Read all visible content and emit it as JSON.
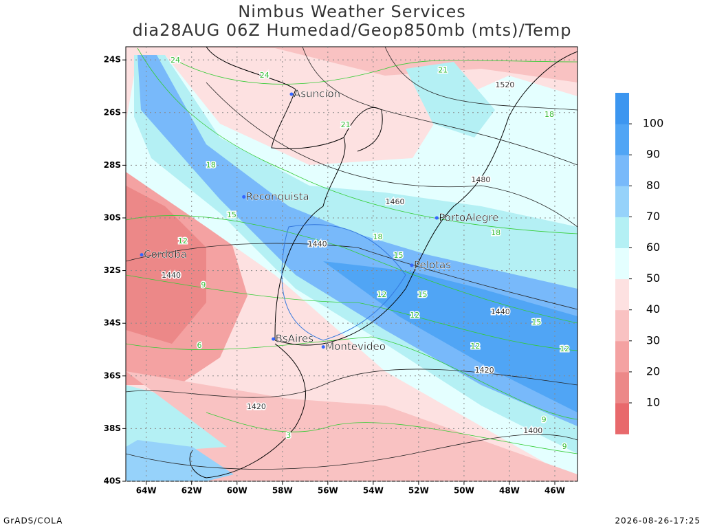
{
  "map": {
    "title": "Nimbus Weather Services",
    "subtitle": "dia28AUG 06Z Humedad/Geop850mb (mts)/Temp",
    "xlim": [
      -64.9,
      -45
    ],
    "ylim": [
      -40,
      -23.5
    ],
    "xticks": [
      {
        "value": -64,
        "label": "64W"
      },
      {
        "value": -62,
        "label": "62W"
      },
      {
        "value": -60,
        "label": "60W"
      },
      {
        "value": -58,
        "label": "58W"
      },
      {
        "value": -56,
        "label": "56W"
      },
      {
        "value": -54,
        "label": "54W"
      },
      {
        "value": -52,
        "label": "52W"
      },
      {
        "value": -50,
        "label": "50W"
      },
      {
        "value": -48,
        "label": "48W"
      },
      {
        "value": -46,
        "label": "46W"
      }
    ],
    "yticks": [
      {
        "value": -24,
        "label": "24S"
      },
      {
        "value": -26,
        "label": "26S"
      },
      {
        "value": -28,
        "label": "28S"
      },
      {
        "value": -30,
        "label": "30S"
      },
      {
        "value": -32,
        "label": "32S"
      },
      {
        "value": -34,
        "label": "34S"
      },
      {
        "value": -36,
        "label": "36S"
      },
      {
        "value": -38,
        "label": "38S"
      },
      {
        "value": -40,
        "label": "40S"
      }
    ],
    "grid": true,
    "cities": [
      {
        "name": "Asuncion",
        "lon": -57.6,
        "lat": -25.3
      },
      {
        "name": "Reconquista",
        "lon": -59.7,
        "lat": -29.2
      },
      {
        "name": "Cordoba",
        "lon": -64.2,
        "lat": -31.4
      },
      {
        "name": "BsAires",
        "lon": -58.4,
        "lat": -34.6
      },
      {
        "name": "Montevideo",
        "lon": -56.2,
        "lat": -34.9
      },
      {
        "name": "PortoAlegre",
        "lon": -51.2,
        "lat": -30.0
      },
      {
        "name": "Pelotas",
        "lon": -52.3,
        "lat": -31.8
      }
    ],
    "geopotential_labels": [
      {
        "value": 1520,
        "lon": -48.2,
        "lat": -24.96
      },
      {
        "value": 1480,
        "lon": -49.26,
        "lat": -28.57
      },
      {
        "value": 1460,
        "lon": -53.04,
        "lat": -29.4
      },
      {
        "value": 1440,
        "lon": -56.46,
        "lat": -31.0
      },
      {
        "value": 1440,
        "lon": -48.4,
        "lat": -33.58
      },
      {
        "value": 1440,
        "lon": -62.9,
        "lat": -32.2
      },
      {
        "value": 1420,
        "lon": -49.1,
        "lat": -35.8
      },
      {
        "value": 1420,
        "lon": -59.15,
        "lat": -37.18
      },
      {
        "value": 1400,
        "lon": -46.96,
        "lat": -38.1
      }
    ],
    "temperature_labels": [
      {
        "value": 24,
        "lon": -62.72,
        "lat": -24.02
      },
      {
        "value": 24,
        "lon": -58.79,
        "lat": -24.6
      },
      {
        "value": 21,
        "lon": -55.22,
        "lat": -26.48
      },
      {
        "value": 21,
        "lon": -50.93,
        "lat": -24.4
      },
      {
        "value": 18,
        "lon": -61.15,
        "lat": -28.0
      },
      {
        "value": 15,
        "lon": -60.24,
        "lat": -29.9
      },
      {
        "value": 12,
        "lon": -62.39,
        "lat": -30.89
      },
      {
        "value": 9,
        "lon": -61.48,
        "lat": -32.56
      },
      {
        "value": 6,
        "lon": -61.66,
        "lat": -34.86
      },
      {
        "value": 3,
        "lon": -57.73,
        "lat": -38.28
      },
      {
        "value": 18,
        "lon": -53.8,
        "lat": -30.73
      },
      {
        "value": 15,
        "lon": -52.89,
        "lat": -31.44
      },
      {
        "value": 12,
        "lon": -53.62,
        "lat": -32.93
      },
      {
        "value": 12,
        "lon": -52.17,
        "lat": -33.71
      },
      {
        "value": 15,
        "lon": -51.83,
        "lat": -32.93
      },
      {
        "value": 15,
        "lon": -46.81,
        "lat": -33.97
      },
      {
        "value": 12,
        "lon": -45.57,
        "lat": -34.99
      },
      {
        "value": 12,
        "lon": -49.5,
        "lat": -34.88
      },
      {
        "value": 9,
        "lon": -46.48,
        "lat": -37.68
      },
      {
        "value": 9,
        "lon": -45.57,
        "lat": -38.7
      },
      {
        "value": 18,
        "lon": -48.6,
        "lat": -30.58
      },
      {
        "value": 18,
        "lon": -46.24,
        "lat": -26.08
      }
    ],
    "colorbar": {
      "levels": [
        10,
        20,
        30,
        40,
        50,
        60,
        70,
        80,
        90,
        100
      ],
      "colors": [
        "#e8696c",
        "#ec8888",
        "#f4a2a2",
        "#f9c2c2",
        "#fde1e1",
        "#e4ffff",
        "#b4f0f4",
        "#96d2fa",
        "#78b9fa",
        "#50a5f5",
        "#3c96f0"
      ]
    },
    "footer_left": "GrADS/COLA",
    "footer_right": "2026-08-26-17:25"
  }
}
